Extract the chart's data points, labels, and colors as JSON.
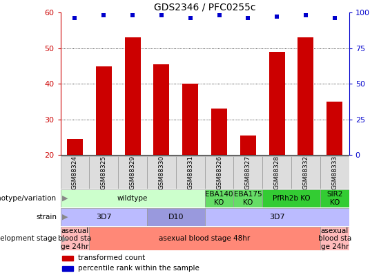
{
  "title": "GDS2346 / PFC0255c",
  "samples": [
    "GSM88324",
    "GSM88325",
    "GSM88329",
    "GSM88330",
    "GSM88331",
    "GSM88326",
    "GSM88327",
    "GSM88328",
    "GSM88332",
    "GSM88333"
  ],
  "bar_values": [
    24.5,
    45.0,
    53.0,
    45.5,
    40.0,
    33.0,
    25.5,
    49.0,
    53.0,
    35.0
  ],
  "dot_values": [
    96,
    98,
    98,
    98,
    96,
    98,
    96,
    97,
    98,
    96
  ],
  "ylim": [
    20,
    60
  ],
  "y2lim": [
    0,
    100
  ],
  "yticks": [
    20,
    30,
    40,
    50,
    60
  ],
  "y2ticks": [
    0,
    25,
    50,
    75,
    100
  ],
  "bar_color": "#CC0000",
  "dot_color": "#0000CC",
  "bar_width": 0.55,
  "genotype_row": {
    "label": "genotype/variation",
    "segments": [
      {
        "start": 0,
        "end": 5,
        "text": "wildtype",
        "color": "#CCFFCC"
      },
      {
        "start": 5,
        "end": 6,
        "text": "EBA140\nKO",
        "color": "#66DD66"
      },
      {
        "start": 6,
        "end": 7,
        "text": "EBA175\nKO",
        "color": "#66DD66"
      },
      {
        "start": 7,
        "end": 9,
        "text": "PfRh2b KO",
        "color": "#33CC33"
      },
      {
        "start": 9,
        "end": 10,
        "text": "SIR2\nKO",
        "color": "#33CC33"
      }
    ]
  },
  "strain_row": {
    "label": "strain",
    "segments": [
      {
        "start": 0,
        "end": 3,
        "text": "3D7",
        "color": "#BBBBFF"
      },
      {
        "start": 3,
        "end": 5,
        "text": "D10",
        "color": "#9999DD"
      },
      {
        "start": 5,
        "end": 10,
        "text": "3D7",
        "color": "#BBBBFF"
      }
    ]
  },
  "dev_row": {
    "label": "development stage",
    "segments": [
      {
        "start": 0,
        "end": 1,
        "text": "asexual\nblood sta\nge 24hr",
        "color": "#FFBBBB"
      },
      {
        "start": 1,
        "end": 9,
        "text": "asexual blood stage 48hr",
        "color": "#FF8877"
      },
      {
        "start": 9,
        "end": 10,
        "text": "asexual\nblood sta\nge 24hr",
        "color": "#FFBBBB"
      }
    ]
  },
  "legend_items": [
    {
      "color": "#CC0000",
      "label": "transformed count"
    },
    {
      "color": "#0000CC",
      "label": "percentile rank within the sample"
    }
  ]
}
